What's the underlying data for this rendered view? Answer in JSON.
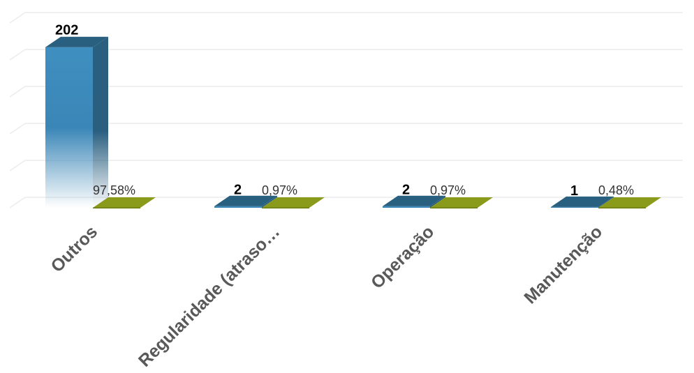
{
  "chart_data": {
    "type": "bar",
    "categories": [
      "Outros",
      "Regularidade (atraso…",
      "Operação",
      "Manutenção"
    ],
    "series": [
      {
        "values": [
          202,
          2,
          2,
          1
        ],
        "data_labels": [
          "202",
          "2",
          "2",
          "1"
        ]
      },
      {
        "values": [
          97.58,
          0.97,
          0.97,
          0.48
        ],
        "data_labels": [
          "97,58%",
          "0,97%",
          "0,97%",
          "0,48%"
        ]
      }
    ],
    "ylim": [
      0,
      250
    ],
    "grid": true,
    "legend": "none",
    "colors": {
      "series1": "#3a86b7",
      "series1_dark": "#2a607f",
      "series2": "#8a9a1b",
      "series2_dark": "#6f7c12"
    }
  }
}
